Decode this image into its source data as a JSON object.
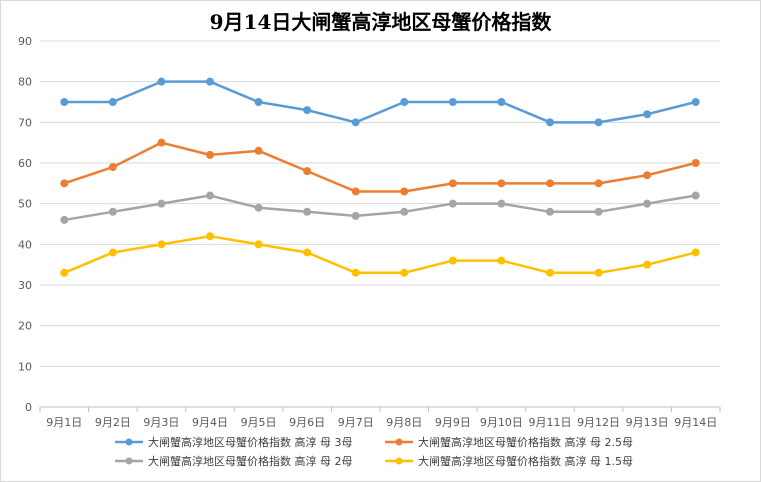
{
  "chart_data": {
    "type": "line",
    "title": "9月14日大闸蟹高淳地区母蟹价格指数",
    "xlabel": "",
    "ylabel": "",
    "ylim": [
      0,
      90
    ],
    "y_ticks": [
      0,
      10,
      20,
      30,
      40,
      50,
      60,
      70,
      80,
      90
    ],
    "grid": true,
    "legend_position": "bottom",
    "categories": [
      "9月1日",
      "9月2日",
      "9月3日",
      "9月4日",
      "9月5日",
      "9月6日",
      "9月7日",
      "9月8日",
      "9月9日",
      "9月10日",
      "9月11日",
      "9月12日",
      "9月13日",
      "9月14日"
    ],
    "series": [
      {
        "name": "大闸蟹高淳地区母蟹价格指数 高淳 母 3母",
        "color": "#5b9bd5",
        "values": [
          75,
          75,
          80,
          80,
          75,
          73,
          70,
          75,
          75,
          75,
          70,
          70,
          72,
          75
        ]
      },
      {
        "name": "大闸蟹高淳地区母蟹价格指数 高淳 母 2.5母",
        "color": "#ed7d31",
        "values": [
          55,
          59,
          65,
          62,
          63,
          58,
          53,
          53,
          55,
          55,
          55,
          55,
          57,
          60
        ]
      },
      {
        "name": "大闸蟹高淳地区母蟹价格指数 高淳 母 2母",
        "color": "#a5a5a5",
        "values": [
          46,
          48,
          50,
          52,
          49,
          48,
          47,
          48,
          50,
          50,
          48,
          48,
          50,
          52
        ]
      },
      {
        "name": "大闸蟹高淳地区母蟹价格指数 高淳 母 1.5母",
        "color": "#ffc000",
        "values": [
          33,
          38,
          40,
          42,
          40,
          38,
          33,
          33,
          36,
          36,
          33,
          33,
          35,
          38
        ]
      }
    ]
  }
}
